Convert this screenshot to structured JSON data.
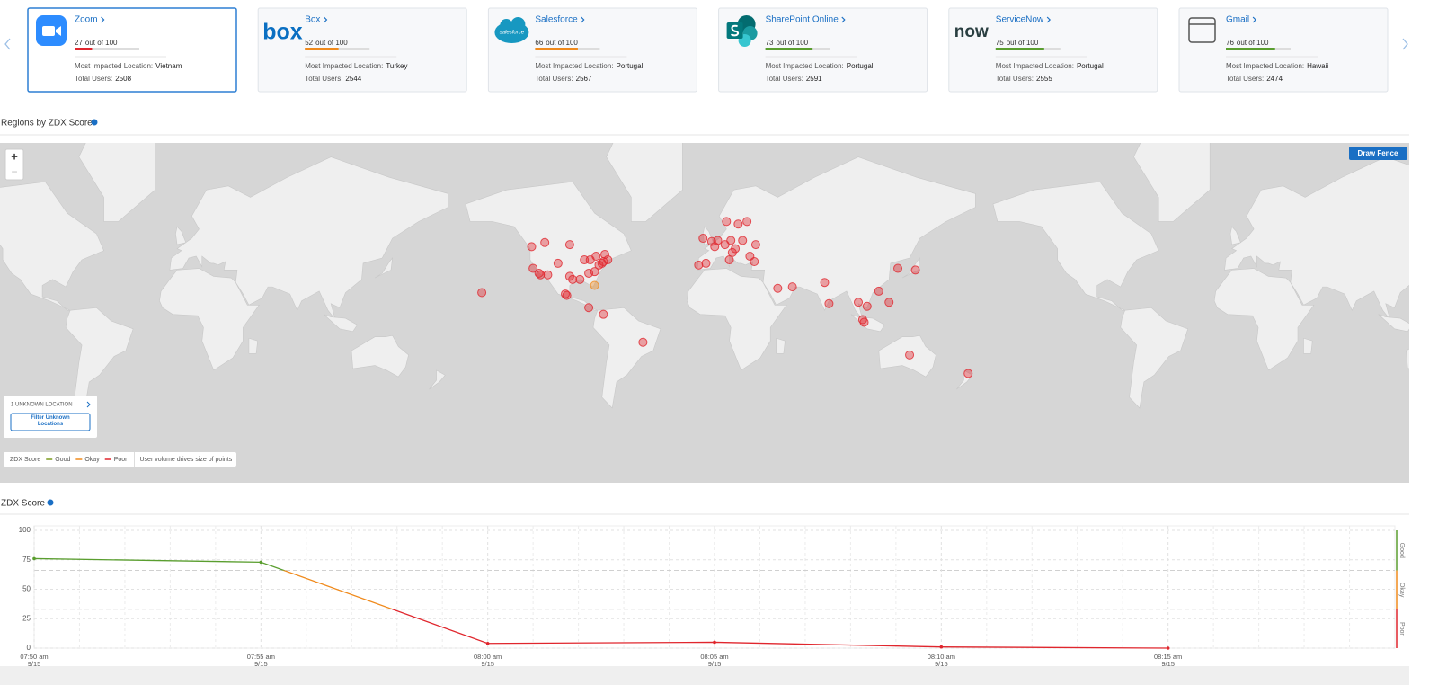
{
  "apps": [
    {
      "name": "Zoom",
      "score": 27,
      "score_suffix": "out of 100",
      "color": "#e0262d",
      "location_label": "Most Impacted Location:",
      "location": "Vietnam",
      "users_label": "Total Users:",
      "users": 2508
    },
    {
      "name": "Box",
      "logo_text": "box",
      "score": 52,
      "score_suffix": "out of 100",
      "color": "#f08a1c",
      "location_label": "Most Impacted Location:",
      "location": "Turkey",
      "users_label": "Total Users:",
      "users": 2544
    },
    {
      "name": "Salesforce",
      "logo_text": "salesforce",
      "score": 66,
      "score_suffix": "out of 100",
      "color": "#f08a1c",
      "location_label": "Most Impacted Location:",
      "location": "Portugal",
      "users_label": "Total Users:",
      "users": 2567
    },
    {
      "name": "SharePoint Online",
      "score": 73,
      "score_suffix": "out of 100",
      "color": "#5a9e2f",
      "location_label": "Most Impacted Location:",
      "location": "Portugal",
      "users_label": "Total Users:",
      "users": 2591
    },
    {
      "name": "ServiceNow",
      "logo_text": "now",
      "score": 75,
      "score_suffix": "out of 100",
      "color": "#5a9e2f",
      "location_label": "Most Impacted Location:",
      "location": "Portugal",
      "users_label": "Total Users:",
      "users": 2555
    },
    {
      "name": "Gmail",
      "score": 76,
      "score_suffix": "out of 100",
      "color": "#5a9e2f",
      "location_label": "Most Impacted Location:",
      "location": "Hawaii",
      "users_label": "Total Users:",
      "users": 2474
    }
  ],
  "map": {
    "title": "Regions by ZDX Score",
    "draw_fence": "Draw Fence",
    "zoom_in": "+",
    "zoom_out": "−",
    "unknown_location": "1 UNKNOWN LOCATION",
    "filter_unknown": "Filter Unknown Locations",
    "legend_title": "ZDX Score",
    "legend": [
      {
        "label": "Good",
        "color": "#7a9a1e"
      },
      {
        "label": "Okay",
        "color": "#f08a1c"
      },
      {
        "label": "Poor",
        "color": "#e0262d"
      }
    ],
    "size_note": "User volume drives size of points",
    "poor_points": [
      [
        -122,
        37
      ],
      [
        -118,
        34
      ],
      [
        -117,
        33
      ],
      [
        -112,
        33
      ],
      [
        -105,
        40
      ],
      [
        -97,
        32
      ],
      [
        -95,
        30
      ],
      [
        -90,
        30
      ],
      [
        -87,
        42
      ],
      [
        -84,
        34
      ],
      [
        -83,
        42
      ],
      [
        -80,
        35
      ],
      [
        -77,
        39
      ],
      [
        -75,
        40
      ],
      [
        -74,
        41
      ],
      [
        -71,
        42
      ],
      [
        -73,
        45
      ],
      [
        -79,
        44
      ],
      [
        -123,
        49
      ],
      [
        -114,
        51
      ],
      [
        -97,
        50
      ],
      [
        -100,
        20
      ],
      [
        -99,
        19
      ],
      [
        -84,
        10
      ],
      [
        -157,
        21
      ],
      [
        -47,
        -16
      ],
      [
        -74,
        5
      ],
      [
        -0.1,
        51.5
      ],
      [
        2,
        49
      ],
      [
        -9,
        39
      ],
      [
        -4,
        40
      ],
      [
        4,
        52
      ],
      [
        9,
        50
      ],
      [
        13,
        52
      ],
      [
        16,
        48
      ],
      [
        24,
        60
      ],
      [
        18,
        59
      ],
      [
        12,
        42
      ],
      [
        21,
        52
      ],
      [
        26,
        44
      ],
      [
        30,
        50
      ],
      [
        10,
        60
      ],
      [
        14,
        46
      ],
      [
        -6,
        53
      ],
      [
        29,
        41
      ],
      [
        45,
        24
      ],
      [
        55,
        25
      ],
      [
        77,
        28
      ],
      [
        80,
        13
      ],
      [
        100,
        14
      ],
      [
        106,
        11
      ],
      [
        121,
        14
      ],
      [
        114,
        22
      ],
      [
        103,
        1
      ],
      [
        104,
        -1
      ],
      [
        139,
        36
      ],
      [
        127,
        37
      ],
      [
        135,
        -25
      ],
      [
        175,
        -37
      ]
    ],
    "okay_points": [
      [
        -80,
        26
      ]
    ]
  },
  "chart_data": {
    "type": "line",
    "title": "ZDX Score",
    "categories": [
      "07:50 am",
      "07:55 am",
      "08:00 am",
      "08:05 am",
      "08:10 am",
      "08:15 am"
    ],
    "category_dates": [
      "9/15",
      "9/15",
      "9/15",
      "9/15",
      "9/15",
      "9/15"
    ],
    "values": [
      76,
      73,
      4,
      5,
      1,
      0
    ],
    "ylim": [
      0,
      100
    ],
    "yticks": [
      0,
      25,
      50,
      75,
      100
    ],
    "grid": true,
    "bands": [
      {
        "label": "Good",
        "from": 66,
        "to": 100,
        "color": "#5a9e2f"
      },
      {
        "label": "Okay",
        "from": 33,
        "to": 66,
        "color": "#f08a1c"
      },
      {
        "label": "Poor",
        "from": 0,
        "to": 33,
        "color": "#e0262d"
      }
    ]
  }
}
